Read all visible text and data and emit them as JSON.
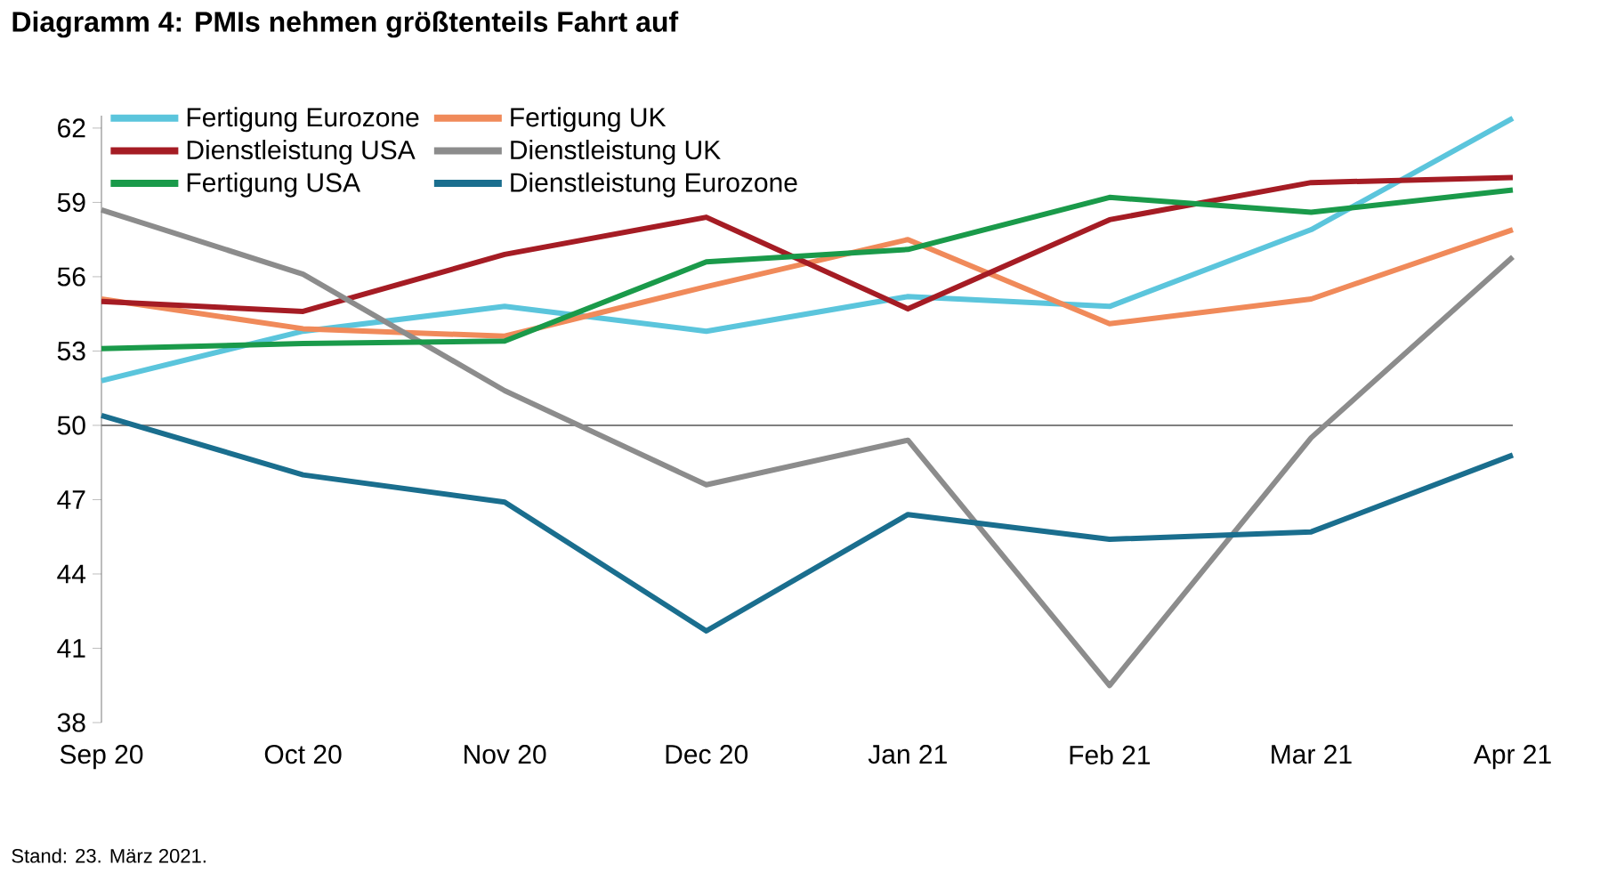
{
  "chart_data": {
    "type": "line",
    "title": "Diagramm 4: PMIs nehmen größtenteils Fahrt auf",
    "categories": [
      "Sep 20",
      "Oct 20",
      "Nov 20",
      "Dec 20",
      "Jan 21",
      "Feb 21",
      "Mar 21",
      "Apr 21"
    ],
    "series": [
      {
        "name": "Fertigung Eurozone",
        "color": "#5bc5dc",
        "values": [
          51.8,
          53.8,
          54.8,
          53.8,
          55.2,
          54.8,
          57.9,
          62.4
        ]
      },
      {
        "name": "Fertigung UK",
        "color": "#f08a5a",
        "values": [
          55.1,
          53.9,
          53.6,
          55.6,
          57.5,
          54.1,
          55.1,
          57.9
        ]
      },
      {
        "name": "Dienstleistung USA",
        "color": "#a51c24",
        "values": [
          55.0,
          54.6,
          56.9,
          58.4,
          54.7,
          58.3,
          59.8,
          60.0
        ]
      },
      {
        "name": "Dienstleistung UK",
        "color": "#8c8c8c",
        "values": [
          58.7,
          56.1,
          51.4,
          47.6,
          49.4,
          39.5,
          49.5,
          56.8
        ]
      },
      {
        "name": "Fertigung USA",
        "color": "#1a9a4a",
        "values": [
          53.1,
          53.3,
          53.4,
          56.6,
          57.1,
          59.2,
          58.6,
          59.5
        ]
      },
      {
        "name": "Dienstleistung Eurozone",
        "color": "#1a6e8e",
        "values": [
          50.4,
          48.0,
          46.9,
          41.7,
          46.4,
          45.4,
          45.7,
          48.8
        ]
      }
    ],
    "ylim": [
      38,
      62.5
    ],
    "yticks": [
      38,
      41,
      44,
      47,
      50,
      53,
      56,
      59,
      62
    ],
    "ref_lines": [
      {
        "axis": "y",
        "value": 50,
        "color": "#7f7f7f"
      }
    ],
    "legend": "top left",
    "grid": false,
    "marker": "none",
    "line_style": "solid",
    "annotations": [
      "Stand: 23. März 2021."
    ]
  }
}
